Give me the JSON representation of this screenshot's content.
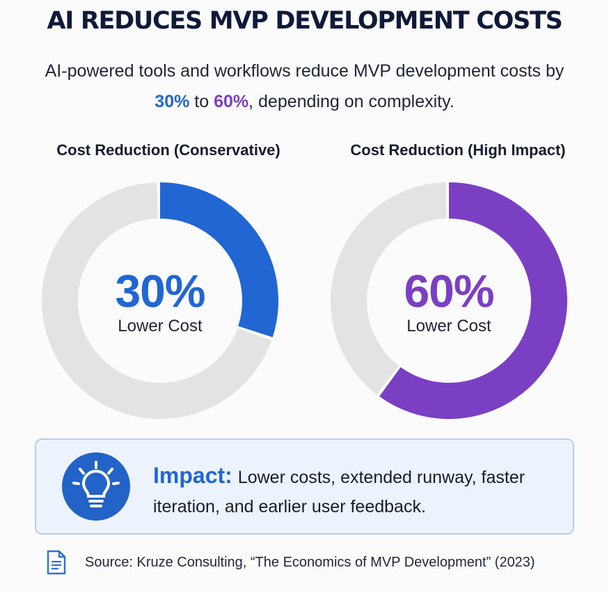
{
  "header": {
    "title": "AI REDUCES MVP DEVELOPMENT COSTS",
    "subtitle_part1": "AI-powered tools and workflows reduce MVP development costs by ",
    "subtitle_low": "30%",
    "subtitle_mid": " to ",
    "subtitle_high": "60%",
    "subtitle_part2": ", depending on complexity."
  },
  "colors": {
    "conservative": "#2166d3",
    "high_impact": "#7b3fc4",
    "track": "#e3e3e3"
  },
  "chart_data": [
    {
      "type": "pie",
      "variant": "donut",
      "title": "Cost Reduction (Conservative)",
      "value_percent": 30,
      "center_label": "30%",
      "center_caption": "Lower Cost",
      "color": "#2166d3"
    },
    {
      "type": "pie",
      "variant": "donut",
      "title": "Cost Reduction (High Impact)",
      "value_percent": 60,
      "center_label": "60%",
      "center_caption": "Lower Cost",
      "color": "#7b3fc4"
    }
  ],
  "impact": {
    "icon": "lightbulb-icon",
    "label": "Impact:",
    "text": "Lower costs, extended runway, faster iteration, and earlier user feedback."
  },
  "source": {
    "icon": "document-icon",
    "text": "Source: Kruze Consulting, “The Economics of MVP Development” (2023)"
  }
}
